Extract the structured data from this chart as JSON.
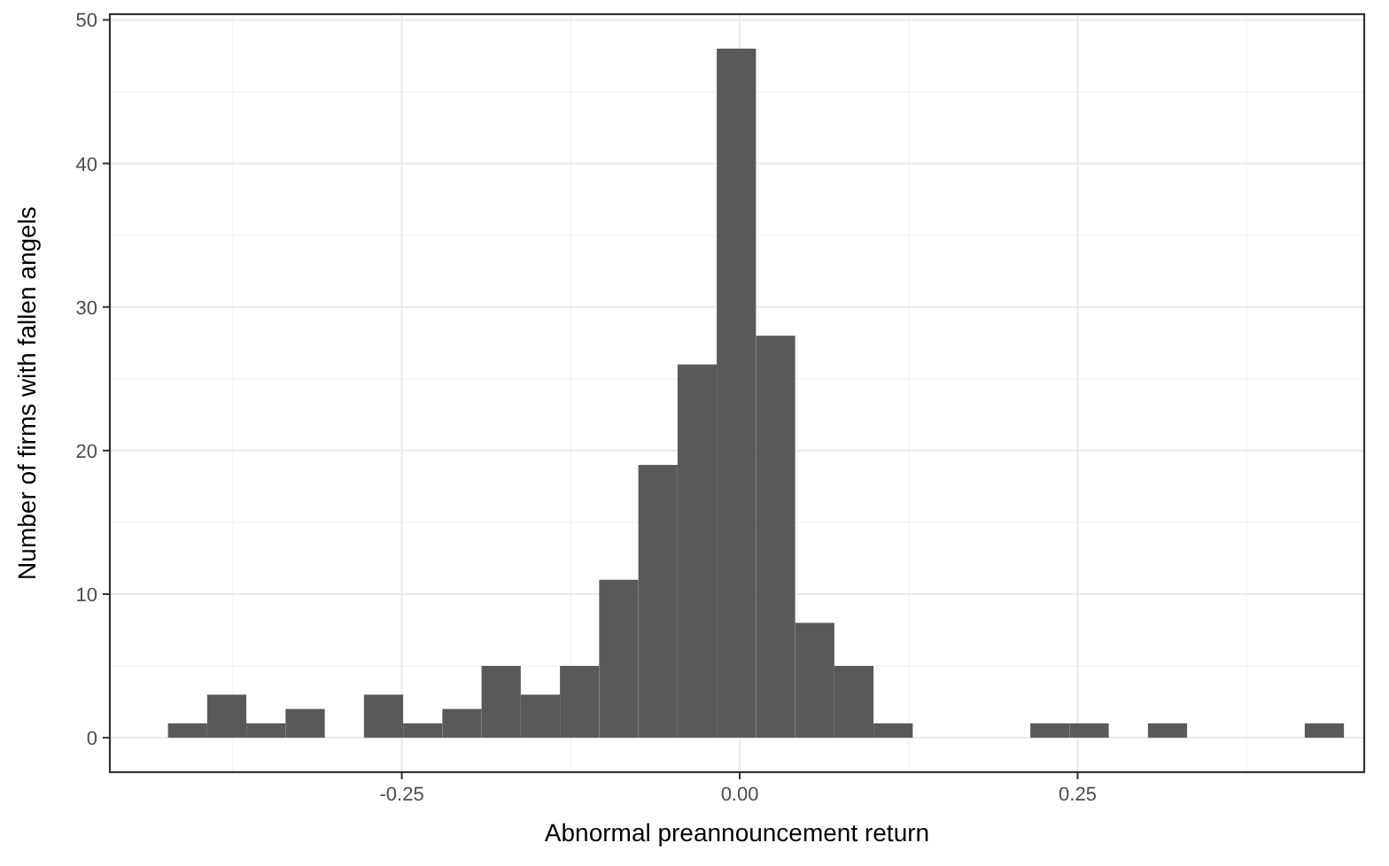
{
  "chart_data": {
    "type": "histogram",
    "xlabel": "Abnormal preannouncement return",
    "ylabel": "Number of firms with fallen angels",
    "color": "#595959",
    "bins": [
      -0.423,
      -0.394,
      -0.365,
      -0.336,
      -0.307,
      -0.278,
      -0.249,
      -0.22,
      -0.191,
      -0.162,
      -0.133,
      -0.104,
      -0.075,
      -0.046,
      -0.017,
      0.012,
      0.041,
      0.07,
      0.099,
      0.128,
      0.157,
      0.186,
      0.215,
      0.244,
      0.273,
      0.302,
      0.331,
      0.36,
      0.389,
      0.418,
      0.447
    ],
    "values": [
      1,
      3,
      1,
      2,
      0,
      3,
      1,
      2,
      5,
      3,
      5,
      11,
      19,
      26,
      48,
      28,
      8,
      5,
      1,
      0,
      0,
      0,
      1,
      1,
      0,
      1,
      0,
      0,
      0,
      1
    ],
    "xlim": [
      -0.466,
      0.462
    ],
    "xticks": [
      {
        "value": -0.25,
        "label": "-0.25"
      },
      {
        "value": 0,
        "label": "0.00"
      },
      {
        "value": 0.25,
        "label": "0.25"
      }
    ],
    "ylim": [
      -2.4,
      50.4
    ],
    "yticks": [
      0,
      10,
      20,
      30,
      40,
      50
    ],
    "grid": true
  }
}
